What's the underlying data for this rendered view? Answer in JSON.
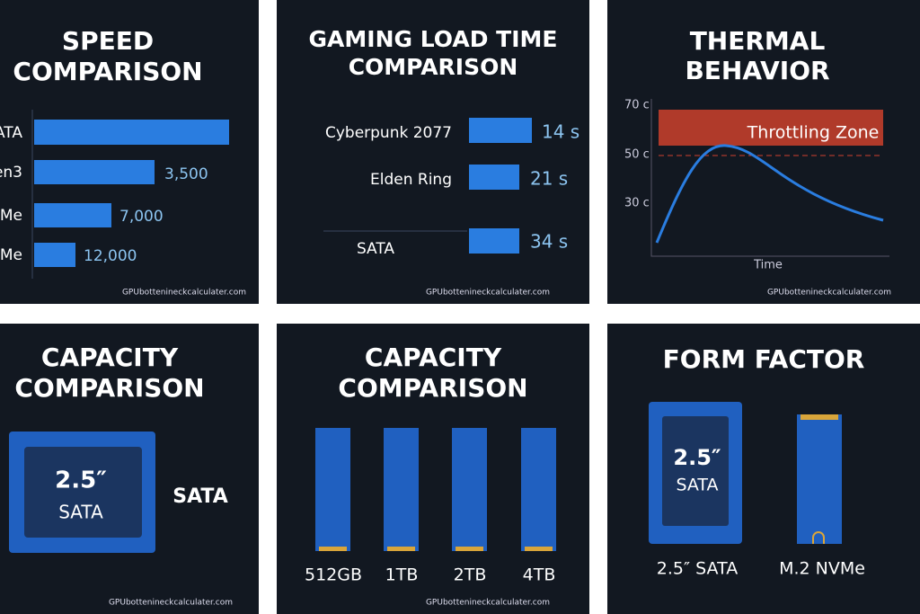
{
  "panels": [
    {
      "title": [
        "SPEED",
        "COMPARISON"
      ],
      "labels": [
        "ATA",
        "en3",
        "VMe",
        "VMe"
      ],
      "values": [
        "3,500",
        "7,000",
        "12,000"
      ],
      "watermark": "GPUbottenineckcalculater.com"
    },
    {
      "title": [
        "GAMING LOAD TIME",
        "COMPARISON"
      ],
      "rows": [
        [
          "Cyberpunk 2077",
          "14 s"
        ],
        [
          "Elden Ring",
          "21 s"
        ],
        [
          "SATA",
          "34 s"
        ]
      ],
      "watermark": "GPUbottenineckcalculater.com"
    },
    {
      "title": [
        "THERMAL",
        "BEHAVIOR"
      ],
      "y_labels": [
        "70 c",
        "50 c",
        "30 c"
      ],
      "zone": "Throttling Zone",
      "x_label": "Time",
      "watermark": "GPUbottenineckcalculater.com"
    },
    {
      "title": [
        "CAPACITY",
        "COMPARISON"
      ],
      "drive": [
        "2.5″",
        "SATA"
      ],
      "label": "SATA",
      "watermark": "GPUbottenineckcalculater.com"
    },
    {
      "title": [
        "CAPACITY",
        "COMPARISON"
      ],
      "capacities": [
        "512GB",
        "1TB",
        "2TB",
        "4TB"
      ],
      "watermark": "GPUbottenineckcalculater.com"
    },
    {
      "title": [
        "FORM FACTOR"
      ],
      "drive": [
        "2.5″",
        "SATA"
      ],
      "labels": [
        "2.5″ SATA",
        "M.2 NVMe"
      ]
    }
  ]
}
